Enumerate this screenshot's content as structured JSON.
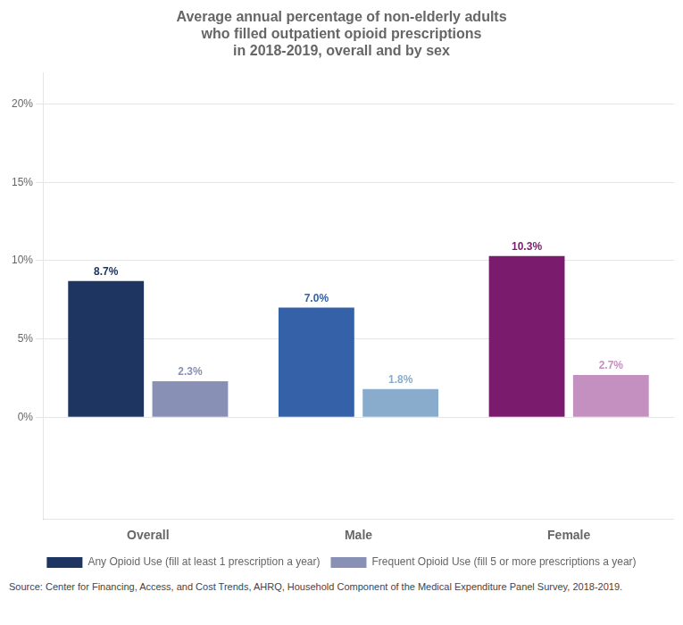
{
  "chart_data": {
    "type": "bar",
    "title": "Average annual percentage of non-elderly adults\nwho filled outpatient opioid prescriptions\nin 2018-2019, overall and by sex",
    "categories": [
      "Overall",
      "Male",
      "Female"
    ],
    "series": [
      {
        "name": "Any Opioid Use (fill at least 1 prescription a year)",
        "colors": [
          "#1e3461",
          "#3561a8",
          "#7a1b6d"
        ],
        "values": [
          8.7,
          7.0,
          10.3
        ],
        "value_labels": [
          "8.7%",
          "7.0%",
          "10.3%"
        ]
      },
      {
        "name": "Frequent Opioid Use (fill 5 or more prescriptions a year)",
        "colors": [
          "#8890b5",
          "#8aaccc",
          "#c490c0"
        ],
        "values": [
          2.3,
          1.8,
          2.7
        ],
        "value_labels": [
          "2.3%",
          "1.8%",
          "2.7%"
        ]
      }
    ],
    "ylim": [
      -6.5,
      22
    ],
    "yticks": [
      {
        "value": 0,
        "label": "0%"
      },
      {
        "value": 5,
        "label": "5%"
      },
      {
        "value": 10,
        "label": "10%"
      },
      {
        "value": 15,
        "label": "15%"
      },
      {
        "value": 20,
        "label": "20%"
      }
    ],
    "grid": true,
    "legend": "bottom",
    "data_labels": true,
    "annotations": [
      "Source: Center for Financing, Access, and Cost Trends, AHRQ, Household Component of the Medical Expenditure Panel Survey, 2018-2019."
    ]
  }
}
